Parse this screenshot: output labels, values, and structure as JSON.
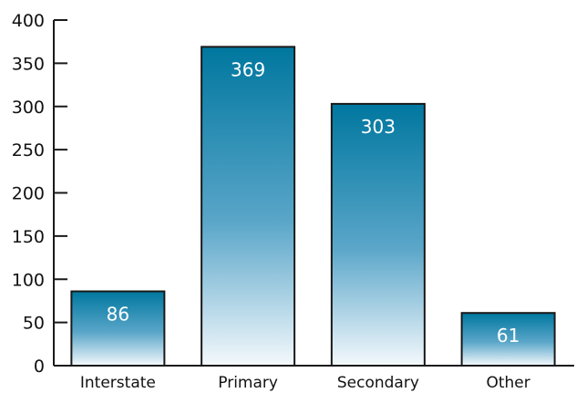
{
  "chart_data": {
    "type": "bar",
    "categories": [
      "Interstate",
      "Primary",
      "Secondary",
      "Other"
    ],
    "values": [
      86,
      369,
      303,
      61
    ],
    "data_labels": [
      "86",
      "369",
      "303",
      "61"
    ],
    "title": "",
    "xlabel": "",
    "ylabel": "",
    "ylim": [
      0,
      400
    ],
    "yticks": [
      "0",
      "50",
      "100",
      "150",
      "200",
      "250",
      "300",
      "350",
      "400"
    ],
    "grid": false,
    "legend": "none",
    "colors": {
      "bar_top": "#00779f",
      "bar_bottom": "#f4f9fc",
      "bar_outline": "#1a1a1a",
      "axis": "#1a1a1a",
      "label_text": "#ffffff"
    }
  }
}
